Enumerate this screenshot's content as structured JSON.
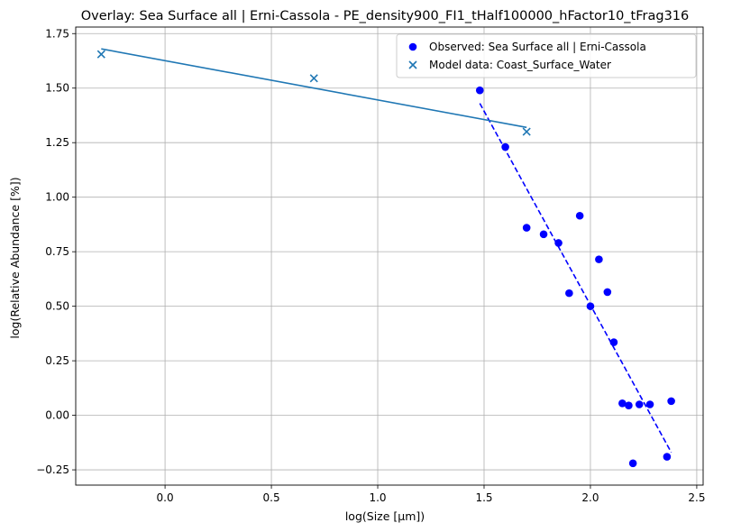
{
  "chart_data": {
    "type": "scatter",
    "title": "Overlay: Sea Surface all | Erni-Cassola - PE_density900_FI1_tHalf100000_hFactor10_tFrag316",
    "xlabel": "log(Size [µm])",
    "ylabel": "log(Relative Abundance [%])",
    "xlim": [
      -0.42,
      2.53
    ],
    "ylim": [
      -0.32,
      1.78
    ],
    "xticks": [
      0.0,
      0.5,
      1.0,
      1.5,
      2.0,
      2.5
    ],
    "xtick_labels": [
      "0.0",
      "0.5",
      "1.0",
      "1.5",
      "2.0",
      "2.5"
    ],
    "yticks": [
      -0.25,
      0.0,
      0.25,
      0.5,
      0.75,
      1.0,
      1.25,
      1.5,
      1.75
    ],
    "ytick_labels": [
      "−0.25",
      "0.00",
      "0.25",
      "0.50",
      "0.75",
      "1.00",
      "1.25",
      "1.50",
      "1.75"
    ],
    "grid": true,
    "legend_position": "top-right",
    "series": [
      {
        "name": "Observed: Sea Surface all | Erni-Cassola",
        "marker": "circle",
        "color": "#0000ff",
        "x": [
          1.48,
          1.6,
          1.7,
          1.78,
          1.85,
          1.9,
          1.95,
          2.0,
          2.04,
          2.08,
          2.11,
          2.15,
          2.18,
          2.2,
          2.23,
          2.28,
          2.36,
          2.38
        ],
        "y": [
          1.49,
          1.23,
          0.86,
          0.83,
          0.79,
          0.56,
          0.915,
          0.5,
          0.715,
          0.565,
          0.335,
          0.055,
          0.045,
          -0.22,
          0.05,
          0.05,
          -0.19,
          0.065
        ]
      },
      {
        "name": "Model data: Coast_Surface_Water",
        "marker": "x",
        "color": "#1f77b4",
        "x": [
          -0.3,
          0.7,
          1.7
        ],
        "y": [
          1.655,
          1.545,
          1.3
        ]
      }
    ],
    "fits": [
      {
        "series": "Observed: Sea Surface all | Erni-Cassola",
        "style": "dashed",
        "color": "#0000ff",
        "x": [
          1.48,
          2.38
        ],
        "y": [
          1.43,
          -0.17
        ]
      },
      {
        "series": "Model data: Coast_Surface_Water",
        "style": "solid",
        "color": "#1f77b4",
        "x": [
          -0.3,
          1.7
        ],
        "y": [
          1.68,
          1.32
        ]
      }
    ]
  }
}
